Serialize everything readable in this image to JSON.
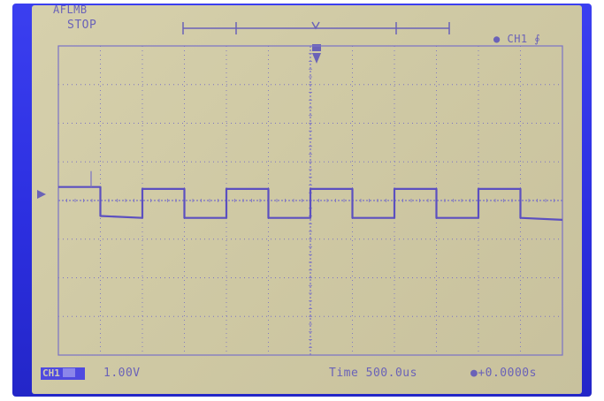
{
  "status": {
    "brand": "AFLMB",
    "run_state": "STOP"
  },
  "trigger": {
    "channel_label": "CH1",
    "edge_symbol": "∮"
  },
  "footer": {
    "ch1_label": "CH1",
    "volts_per_div": "1.00V",
    "time_per_div": "Time 500.0us",
    "offset": "+0.0000s"
  },
  "colors": {
    "bezel": "#2c2fe0",
    "screen": "#d0caa6",
    "trace": "#5b4fc0",
    "grid": "#7a72c6"
  },
  "chart_data": {
    "type": "line",
    "grid_divisions": {
      "x": 12,
      "y": 8
    },
    "waveform": "square",
    "x_range_us": [
      0,
      6000
    ],
    "y_range_div": [
      -4,
      4
    ],
    "points_div": [
      [
        0,
        0.35
      ],
      [
        1.0,
        0.35
      ],
      [
        1.0,
        -0.4
      ],
      [
        2.0,
        -0.45
      ],
      [
        2.0,
        0.3
      ],
      [
        3.0,
        0.3
      ],
      [
        3.0,
        -0.45
      ],
      [
        4.0,
        -0.45
      ],
      [
        4.0,
        0.3
      ],
      [
        5.0,
        0.3
      ],
      [
        5.0,
        -0.45
      ],
      [
        6.0,
        -0.45
      ],
      [
        6.0,
        0.3
      ],
      [
        7.0,
        0.3
      ],
      [
        7.0,
        -0.45
      ],
      [
        8.0,
        -0.45
      ],
      [
        8.0,
        0.3
      ],
      [
        9.0,
        0.3
      ],
      [
        9.0,
        -0.45
      ],
      [
        10.0,
        -0.45
      ],
      [
        10.0,
        0.3
      ],
      [
        11.0,
        0.3
      ],
      [
        11.0,
        -0.45
      ],
      [
        12.0,
        -0.5
      ]
    ]
  }
}
